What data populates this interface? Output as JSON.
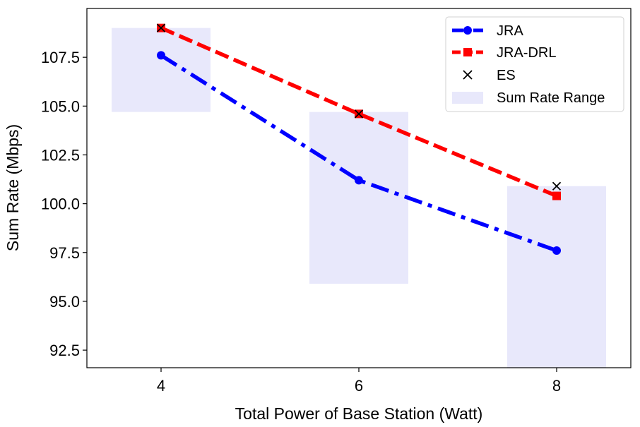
{
  "chart_data": {
    "type": "line",
    "title": "",
    "xlabel": "Total Power of Base Station (Watt)",
    "ylabel": "Sum Rate (Mbps)",
    "x": [
      4,
      6,
      8
    ],
    "x_ticks": [
      4,
      6,
      8
    ],
    "x_tick_labels": [
      "4",
      "6",
      "8"
    ],
    "xlim": [
      3.25,
      8.75
    ],
    "ylim": [
      91.6,
      110.0
    ],
    "y_ticks": [
      92.5,
      95.0,
      97.5,
      100.0,
      102.5,
      105.0,
      107.5
    ],
    "y_tick_labels": [
      "92.5",
      "95.0",
      "97.5",
      "100.0",
      "102.5",
      "105.0",
      "107.5"
    ],
    "grid": false,
    "legend_position": "top-right",
    "series": [
      {
        "name": "JRA",
        "values": [
          107.6,
          101.2,
          97.6
        ],
        "color": "#0000ff",
        "style": "dash-dot",
        "marker": "circle"
      },
      {
        "name": "JRA-DRL",
        "values": [
          109.0,
          104.6,
          100.4
        ],
        "color": "#ff0000",
        "style": "dashed",
        "marker": "square"
      },
      {
        "name": "ES",
        "values": [
          109.0,
          104.6,
          100.9
        ],
        "color": "#000000",
        "style": "none",
        "marker": "x"
      }
    ],
    "range_bars": {
      "name": "Sum Rate Range",
      "color": "#e8e8fb",
      "half_width": 0.5,
      "ranges": [
        [
          104.7,
          109.0
        ],
        [
          95.9,
          104.7
        ],
        [
          91.6,
          100.9
        ]
      ]
    }
  }
}
